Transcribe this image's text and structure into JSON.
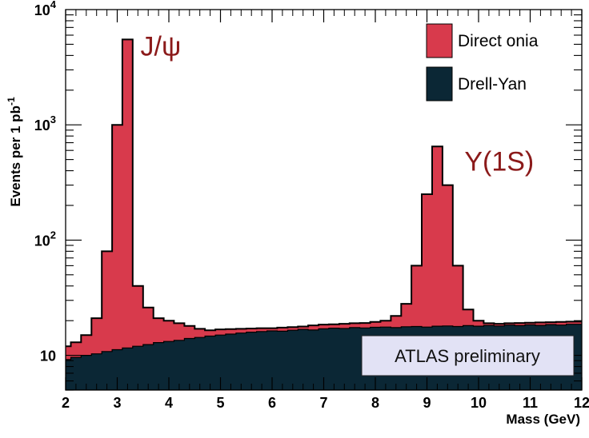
{
  "chart_data": {
    "type": "area",
    "xlabel": "Mass (GeV)",
    "ylabel": "Events per 1 pb",
    "ylabel_sup": "-1",
    "xlim": [
      2,
      12
    ],
    "ylim": [
      5,
      10000
    ],
    "yscale": "log",
    "x_ticks": [
      "2",
      "3",
      "4",
      "5",
      "6",
      "7",
      "8",
      "9",
      "10",
      "11",
      "12"
    ],
    "y_ticks": [
      {
        "value": 10,
        "base": "10",
        "exp": ""
      },
      {
        "value": 100,
        "base": "10",
        "exp": "2"
      },
      {
        "value": 1000,
        "base": "10",
        "exp": "3"
      },
      {
        "value": 10000,
        "base": "10",
        "exp": "4"
      }
    ],
    "grid": false,
    "legend_position": "top-right",
    "colors": {
      "direct_onia": "#d83a4c",
      "drell_yan": "#0b2735",
      "outline": "#000000",
      "label": "#8b1a1a",
      "badge_fill": "#e2e2f5"
    },
    "series": [
      {
        "name": "Drell-Yan",
        "x": [
          2.0,
          2.2,
          2.4,
          2.6,
          2.8,
          3.0,
          3.2,
          3.4,
          3.6,
          3.8,
          4.0,
          4.2,
          4.4,
          4.6,
          4.8,
          5.0,
          5.2,
          5.4,
          5.6,
          5.8,
          6.0,
          6.2,
          6.4,
          6.6,
          6.8,
          7.0,
          7.2,
          7.4,
          7.6,
          7.8,
          8.0,
          8.2,
          8.4,
          8.6,
          8.8,
          9.0,
          9.2,
          9.4,
          9.6,
          9.8,
          10.0,
          10.2,
          10.4,
          10.6,
          10.8,
          11.0,
          11.2,
          11.4,
          11.6,
          11.8,
          12.0
        ],
        "values": [
          9.2,
          9.6,
          10,
          10.3,
          10.8,
          11.2,
          11.6,
          12.0,
          12.4,
          12.9,
          13.2,
          13.5,
          14.0,
          14.3,
          14.7,
          15.0,
          15.3,
          15.6,
          15.9,
          16.1,
          16.3,
          16.2,
          16.5,
          16.8,
          16.6,
          17.0,
          17.2,
          17.1,
          17.4,
          17.3,
          17.5,
          17.6,
          17.4,
          17.7,
          17.8,
          17.6,
          17.9,
          18.0,
          17.8,
          18.1,
          17.9,
          18.2,
          18.0,
          18.3,
          18.1,
          18.4,
          18.2,
          18.5,
          18.3,
          18.6,
          18.6
        ]
      },
      {
        "name": "Direct onia",
        "x": [
          2.0,
          2.2,
          2.4,
          2.6,
          2.8,
          3.0,
          3.2,
          3.4,
          3.6,
          3.8,
          4.0,
          4.2,
          4.4,
          4.6,
          4.8,
          5.0,
          5.2,
          5.4,
          5.6,
          5.8,
          6.0,
          6.2,
          6.4,
          6.6,
          6.8,
          7.0,
          7.2,
          7.4,
          7.6,
          7.8,
          8.0,
          8.2,
          8.4,
          8.6,
          8.8,
          9.0,
          9.2,
          9.4,
          9.6,
          9.8,
          10.0,
          10.2,
          10.4,
          10.6,
          10.8,
          11.0,
          11.2,
          11.4,
          11.6,
          11.8,
          12.0
        ],
        "values": [
          12,
          13,
          15,
          21,
          80,
          1000,
          5500,
          40,
          26,
          21,
          20,
          19,
          18,
          17,
          16.5,
          16.8,
          16.9,
          17.0,
          17.1,
          17.2,
          17.2,
          17.4,
          17.6,
          17.8,
          18.2,
          18.5,
          18.6,
          18.8,
          19.0,
          19.1,
          19.5,
          20,
          22,
          28,
          60,
          250,
          650,
          300,
          60,
          25,
          20,
          19,
          18.8,
          19,
          19.1,
          19.2,
          19.3,
          19.4,
          19.5,
          19.6,
          19.6
        ]
      }
    ],
    "annotations": [
      {
        "text": "J/ψ",
        "x": 3.45,
        "y": 4000
      },
      {
        "text": "Υ(1S)",
        "x": 10.4,
        "y": 400
      }
    ]
  },
  "legend": {
    "items": [
      {
        "label": "Direct onia",
        "color": "#d83a4c"
      },
      {
        "label": "Drell-Yan",
        "color": "#0b2735"
      }
    ]
  },
  "badge": {
    "text": "ATLAS preliminary"
  }
}
